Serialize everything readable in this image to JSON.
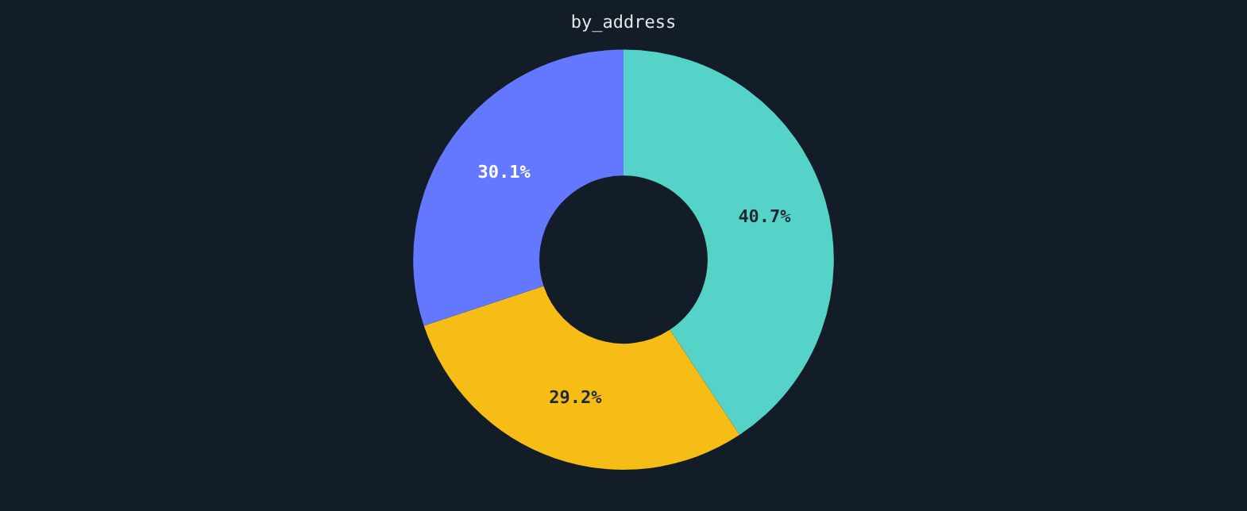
{
  "chart_data": {
    "type": "donut",
    "title": "by_address",
    "categories": [
      null,
      null,
      null
    ],
    "values": [
      40.7,
      29.2,
      30.1
    ],
    "colors": [
      "#56d3c8",
      "#f7bd17",
      "#6478ff"
    ],
    "value_labels": [
      "40.7%",
      "29.2%",
      "30.1%"
    ],
    "legend": false
  }
}
